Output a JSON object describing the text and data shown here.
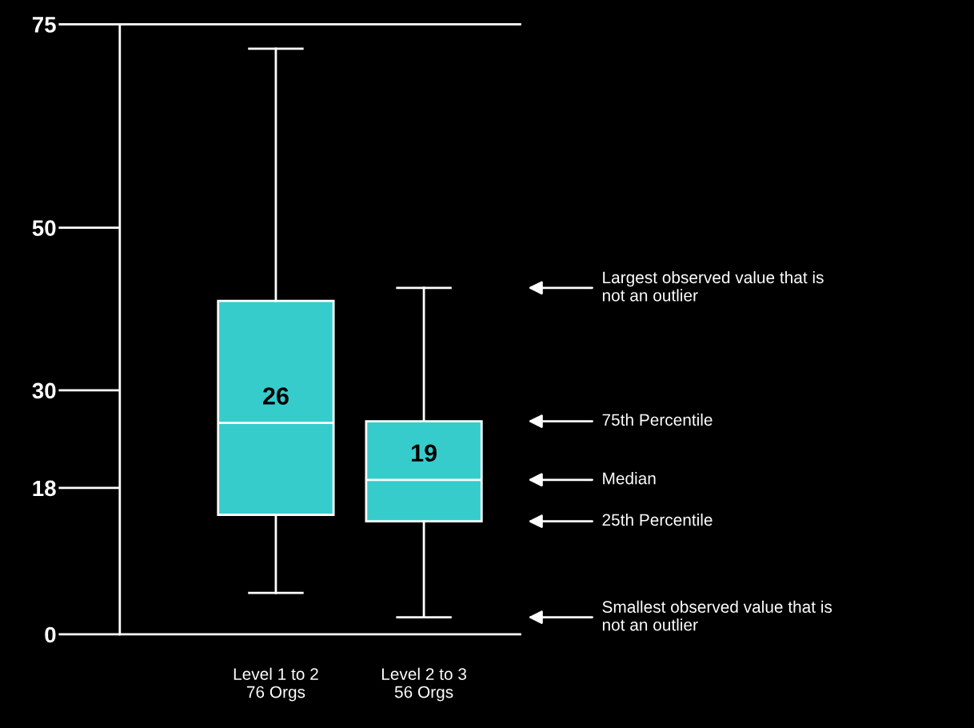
{
  "chart_data": {
    "type": "box",
    "categories": [
      "Level 1 to 2\n76 Orgs",
      "Level 2 to 3\n56 Orgs"
    ],
    "boxes": [
      {
        "low": 5.1,
        "q1": 14.7,
        "median": 26,
        "q3": 41,
        "high": 72
      },
      {
        "low": 2.1,
        "q1": 13.9,
        "median": 19,
        "q3": 26.2,
        "high": 42.6
      }
    ],
    "color": "#36cccc",
    "value_labels": [
      "26",
      "19"
    ],
    "ylim": [
      0,
      75
    ],
    "yticks": [
      0,
      18,
      30,
      50,
      75
    ],
    "grid": false,
    "annotations": [
      "Largest observed value that is\nnot an outlier",
      "75th Percentile",
      "Median",
      "25th Percentile",
      "Smallest observed value that is\nnot an outlier"
    ]
  }
}
